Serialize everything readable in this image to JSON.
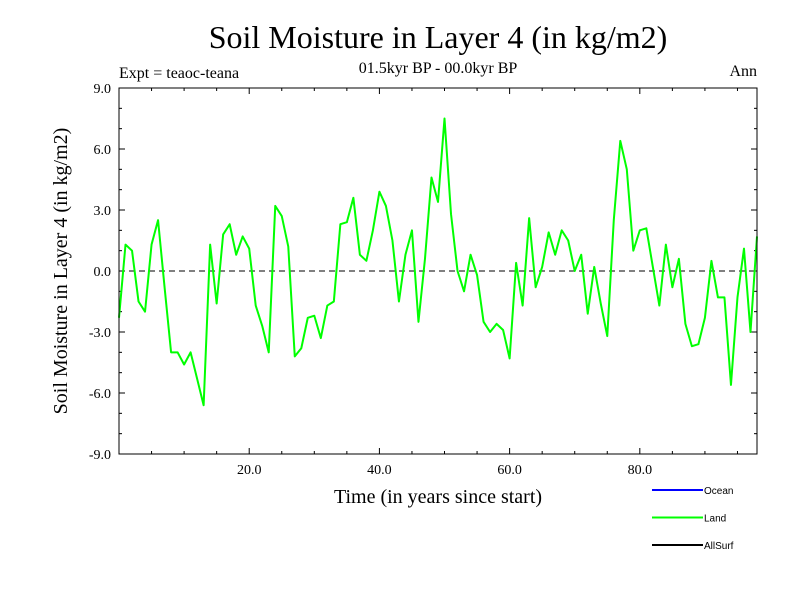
{
  "chart_data": {
    "type": "line",
    "title": "Soil Moisture in Layer 4 (in kg/m2)",
    "subtitle": "01.5kyr BP - 00.0kyr BP",
    "experiment": "Expt = teaoc-teana",
    "season": "Ann",
    "xlabel": "Time (in years since start)",
    "ylabel": "Soil Moisture in Layer 4 (in kg/m2)",
    "xlim": [
      0,
      98
    ],
    "ylim": [
      -9,
      9
    ],
    "xticks": [
      20,
      40,
      60,
      80
    ],
    "xtick_labels": [
      "20.0",
      "40.0",
      "60.0",
      "80.0"
    ],
    "yticks": [
      -9,
      -6,
      -3,
      0,
      3,
      6,
      9
    ],
    "ytick_labels": [
      "-9.0",
      "-6.0",
      "-3.0",
      "0.0",
      "3.0",
      "6.0",
      "9.0"
    ],
    "zero_line": true,
    "legend": {
      "placement": "bottom-right",
      "entries": [
        {
          "name": "Ocean",
          "color": "#0000ff"
        },
        {
          "name": "Land",
          "color": "#00ff00"
        },
        {
          "name": "AllSurf",
          "color": "#000000"
        }
      ]
    },
    "series": [
      {
        "name": "Land",
        "color": "#00ff00",
        "x": [
          0,
          1,
          2,
          3,
          4,
          5,
          6,
          7,
          8,
          9,
          10,
          11,
          12,
          13,
          14,
          15,
          16,
          17,
          18,
          19,
          20,
          21,
          22,
          23,
          24,
          25,
          26,
          27,
          28,
          29,
          30,
          31,
          32,
          33,
          34,
          35,
          36,
          37,
          38,
          39,
          40,
          41,
          42,
          43,
          44,
          45,
          46,
          47,
          48,
          49,
          50,
          51,
          52,
          53,
          54,
          55,
          56,
          57,
          58,
          59,
          60,
          61,
          62,
          63,
          64,
          65,
          66,
          67,
          68,
          69,
          70,
          71,
          72,
          73,
          74,
          75,
          76,
          77,
          78,
          79,
          80,
          81,
          82,
          83,
          84,
          85,
          86,
          87,
          88,
          89,
          90,
          91,
          92,
          93,
          94,
          95,
          96,
          97,
          98
        ],
        "values": [
          -2.3,
          1.3,
          1.0,
          -1.5,
          -2.0,
          1.3,
          2.5,
          -0.8,
          -4.0,
          -4.0,
          -4.6,
          -4.0,
          -5.3,
          -6.6,
          1.3,
          -1.6,
          1.8,
          2.3,
          0.8,
          1.7,
          1.1,
          -1.7,
          -2.7,
          -4.0,
          3.2,
          2.7,
          1.2,
          -4.2,
          -3.8,
          -2.3,
          -2.2,
          -3.3,
          -1.7,
          -1.5,
          2.3,
          2.4,
          3.6,
          0.8,
          0.5,
          2.0,
          3.9,
          3.2,
          1.5,
          -1.5,
          0.8,
          2.0,
          -2.5,
          0.6,
          4.6,
          3.4,
          7.5,
          2.8,
          0.0,
          -1.0,
          0.8,
          -0.2,
          -2.5,
          -3.0,
          -2.6,
          -2.9,
          -4.3,
          0.4,
          -1.7,
          2.6,
          -0.8,
          0.2,
          1.9,
          0.8,
          2.0,
          1.5,
          0.0,
          0.8,
          -2.1,
          0.2,
          -1.6,
          -3.2,
          2.5,
          6.4,
          5.0,
          1.0,
          2.0,
          2.1,
          0.2,
          -1.7,
          1.3,
          -0.8,
          0.6,
          -2.6,
          -3.7,
          -3.6,
          -2.3,
          0.5,
          -1.3,
          -1.3,
          -5.6,
          -1.3,
          1.1,
          -3.0,
          1.7
        ]
      }
    ]
  }
}
